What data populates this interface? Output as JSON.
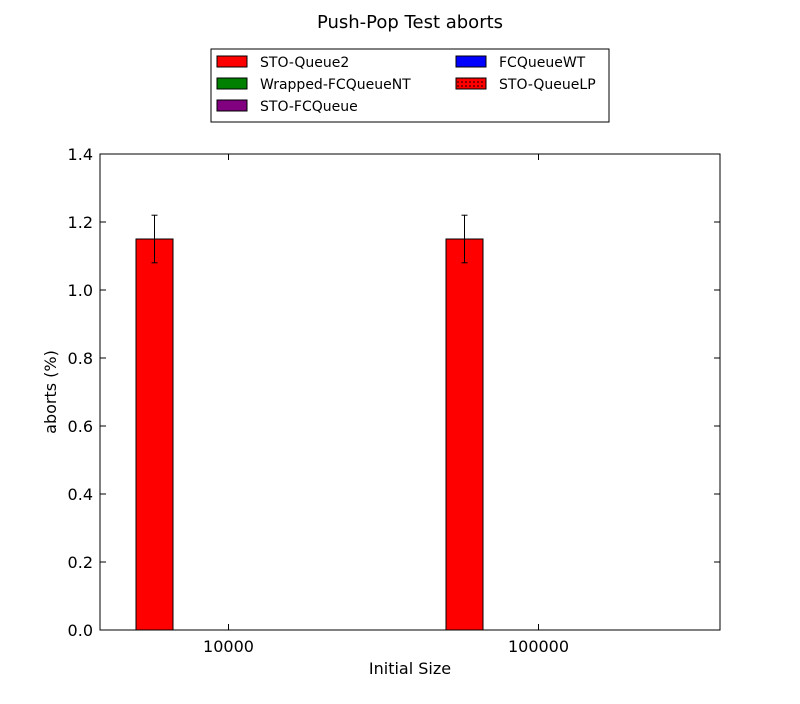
{
  "chart_data": {
    "type": "bar",
    "title": "Push-Pop Test aborts",
    "xlabel": "Initial Size",
    "ylabel": "aborts (%)",
    "categories": [
      "10000",
      "100000"
    ],
    "ylim": [
      0,
      1.4
    ],
    "yticks": [
      "0.0",
      "0.2",
      "0.4",
      "0.6",
      "0.8",
      "1.0",
      "1.2",
      "1.4"
    ],
    "grid": false,
    "legend_placement": "top-center",
    "series": [
      {
        "name": "STO-Queue2",
        "values": [
          1.15,
          1.15
        ],
        "errors": [
          0.07,
          0.07
        ],
        "color": "#ff0000",
        "hatch": ""
      },
      {
        "name": "Wrapped-FCQueueNT",
        "values": [
          0,
          0
        ],
        "errors": [
          0,
          0
        ],
        "color": "#008000",
        "hatch": ""
      },
      {
        "name": "STO-FCQueue",
        "values": [
          0,
          0
        ],
        "errors": [
          0,
          0
        ],
        "color": "#800080",
        "hatch": ""
      },
      {
        "name": "FCQueueWT",
        "values": [
          0,
          0
        ],
        "errors": [
          0,
          0
        ],
        "color": "#0000ff",
        "hatch": ""
      },
      {
        "name": "STO-QueueLP",
        "values": [
          0,
          0
        ],
        "errors": [
          0,
          0
        ],
        "color": "#ff0000",
        "hatch": "dots"
      }
    ]
  }
}
